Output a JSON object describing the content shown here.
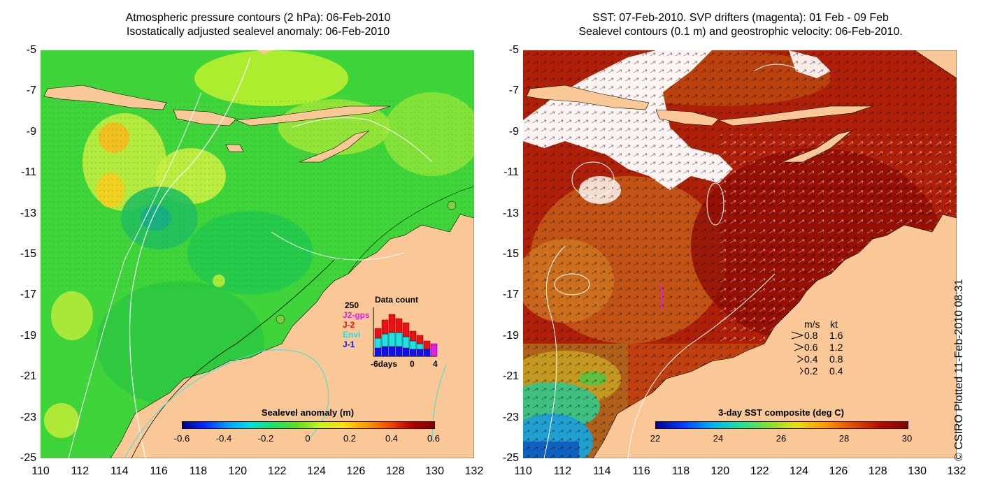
{
  "left_panel": {
    "title_line1": "Atmospheric pressure contours (2 hPa): 06-Feb-2010",
    "title_line2": "Isostatically adjusted sealevel anomaly: 06-Feb-2010",
    "colorbar": {
      "title": "Sealevel anomaly (m)",
      "ticks": [
        "-0.6",
        "-0.4",
        "-0.2",
        "0",
        "0.2",
        "0.4",
        "0.6"
      ],
      "range": [
        -0.6,
        0.6
      ]
    },
    "data_count": {
      "title": "Data count",
      "max_label": "250",
      "x_ticks": [
        "-6days",
        "0",
        "4"
      ],
      "missions": [
        {
          "name": "J2-gps",
          "color": "#e020e0"
        },
        {
          "name": "J-2",
          "color": "#ee1111"
        },
        {
          "name": "Envi",
          "color": "#22e0e0"
        },
        {
          "name": "J-1",
          "color": "#1111ee"
        }
      ]
    }
  },
  "right_panel": {
    "title_line1": "SST: 07-Feb-2010. SVP drifters (magenta): 01 Feb - 09 Feb",
    "title_line2": "Sealevel contours (0.1 m) and geostrophic velocity: 06-Feb-2010.",
    "colorbar": {
      "title": "3-day SST composite (deg C)",
      "ticks": [
        "22",
        "24",
        "26",
        "28",
        "30"
      ],
      "range": [
        22,
        30
      ]
    },
    "velocity_legend": {
      "header_ms": "m/s",
      "header_kt": "kt",
      "rows": [
        {
          "ms": "0.8",
          "kt": "1.6"
        },
        {
          "ms": "0.6",
          "kt": "1.2"
        },
        {
          "ms": "0.4",
          "kt": "0.8"
        },
        {
          "ms": "0.2",
          "kt": "0.4"
        }
      ]
    }
  },
  "axes": {
    "y_ticks": [
      "-5",
      "-7",
      "-9",
      "-11",
      "-13",
      "-15",
      "-17",
      "-19",
      "-21",
      "-23",
      "-25"
    ],
    "x_ticks": [
      "110",
      "112",
      "114",
      "116",
      "118",
      "120",
      "122",
      "124",
      "126",
      "128",
      "130",
      "132"
    ],
    "lat_range": [
      -25,
      -5
    ],
    "lon_range": [
      110,
      132
    ]
  },
  "copyright": "© CSIRO Plotted 11-Feb-2010 08:31",
  "colors": {
    "land": "#f9c896",
    "sla_green": "#3ed43a",
    "sst_dark_red": "#a01808",
    "cloud": "#ffffff"
  }
}
